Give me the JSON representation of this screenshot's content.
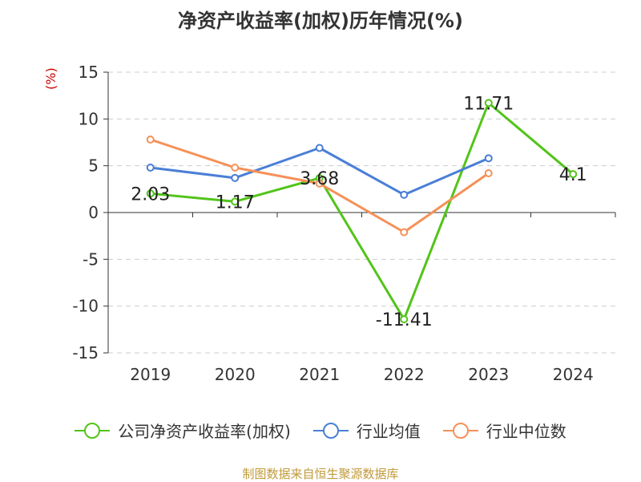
{
  "title": "净资产收益率(加权)历年情况(%)",
  "source": "制图数据来自恒生聚源数据库",
  "chart_data": {
    "type": "line",
    "title": "净资产收益率(加权)历年情况(%)",
    "ylabel": "(%)",
    "xlabel": "",
    "categories": [
      "2019",
      "2020",
      "2021",
      "2022",
      "2023",
      "2024"
    ],
    "ylim": [
      -15,
      15
    ],
    "yticks": [
      15,
      10,
      5,
      0,
      -5,
      -10,
      -15
    ],
    "grid": true,
    "legend_position": "bottom",
    "series": [
      {
        "name": "公司净资产收益率(加权)",
        "color": "#52c41a",
        "values": [
          2.03,
          1.17,
          3.68,
          -11.41,
          11.71,
          4.1
        ],
        "labels": [
          "2.03",
          "1.17",
          "3.68",
          "-11.41",
          "11.71",
          "4.1"
        ]
      },
      {
        "name": "行业均值",
        "color": "#4a7fd6",
        "values": [
          4.8,
          3.7,
          6.9,
          1.9,
          5.8,
          null
        ]
      },
      {
        "name": "行业中位数",
        "color": "#f59158",
        "values": [
          7.8,
          4.8,
          3.1,
          -2.1,
          4.2,
          null
        ]
      }
    ]
  }
}
